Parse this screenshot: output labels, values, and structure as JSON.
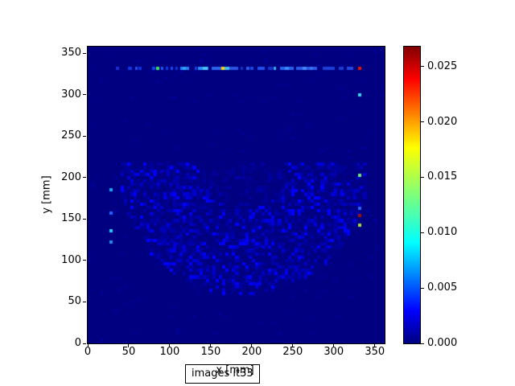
{
  "figure": {
    "annotation_label": "images it33"
  },
  "axes": {
    "xlabel": "x [mm]",
    "ylabel": "y [mm]",
    "x_ticks": [
      0,
      50,
      100,
      150,
      200,
      250,
      300,
      350
    ],
    "y_ticks": [
      0,
      50,
      100,
      150,
      200,
      250,
      300,
      350
    ],
    "x_range": [
      0,
      362
    ],
    "y_range": [
      0,
      358
    ],
    "plot_background": "#000080"
  },
  "colorbar": {
    "tick_labels": [
      "0.000",
      "0.005",
      "0.010",
      "0.015",
      "0.020",
      "0.025"
    ],
    "tick_values": [
      0,
      0.005,
      0.01,
      0.015,
      0.02,
      0.025
    ],
    "vmin": 0,
    "vmax": 0.0268,
    "colormap": "jet",
    "gradient_stops_bottom_to_top": [
      [
        0,
        "#000080"
      ],
      [
        0.11,
        "#0000ff"
      ],
      [
        0.34,
        "#00ffff"
      ],
      [
        0.5,
        "#7dff7a"
      ],
      [
        0.66,
        "#ffff00"
      ],
      [
        0.89,
        "#ff0000"
      ],
      [
        1,
        "#800000"
      ]
    ]
  },
  "chart_data": {
    "type": "heatmap",
    "title": "images it33",
    "xlabel": "x [mm]",
    "ylabel": "y [mm]",
    "x_range": [
      0,
      362
    ],
    "y_range": [
      0,
      358
    ],
    "cell_size_mm": 4,
    "colormap": "jet",
    "value_range": [
      0,
      0.0268
    ],
    "background_color": "#000080",
    "bright_row": {
      "y": 330,
      "height": 4,
      "segments": [
        {
          "x": 34,
          "w": 4,
          "color": "#1b2fd0"
        },
        {
          "x": 49,
          "w": 5,
          "color": "#1535e0"
        },
        {
          "x": 58,
          "w": 3,
          "color": "#2a4cf0"
        },
        {
          "x": 62,
          "w": 4,
          "color": "#1133dd"
        },
        {
          "x": 78,
          "w": 4,
          "color": "#0f42f5"
        },
        {
          "x": 83,
          "w": 4,
          "color": "#3fdf5f"
        },
        {
          "x": 89,
          "w": 3,
          "color": "#2255f0"
        },
        {
          "x": 95,
          "w": 3,
          "color": "#1038e0"
        },
        {
          "x": 101,
          "w": 3,
          "color": "#1846f0"
        },
        {
          "x": 107,
          "w": 3,
          "color": "#0c35d8"
        },
        {
          "x": 113,
          "w": 11,
          "color": "#2f7af5"
        },
        {
          "x": 116,
          "w": 4,
          "color": "#28a8f8"
        },
        {
          "x": 130,
          "w": 3,
          "color": "#1040e8"
        },
        {
          "x": 134,
          "w": 13,
          "color": "#2f8cf8"
        },
        {
          "x": 140,
          "w": 6,
          "color": "#4cc2f8"
        },
        {
          "x": 151,
          "w": 12,
          "color": "#2d64ee"
        },
        {
          "x": 163,
          "w": 4,
          "color": "#ffd400"
        },
        {
          "x": 167,
          "w": 6,
          "color": "#38c0ee"
        },
        {
          "x": 173,
          "w": 10,
          "color": "#2a55e4"
        },
        {
          "x": 186,
          "w": 3,
          "color": "#1031c8"
        },
        {
          "x": 193,
          "w": 4,
          "color": "#2a59e8"
        },
        {
          "x": 198,
          "w": 4,
          "color": "#1e48e0"
        },
        {
          "x": 207,
          "w": 9,
          "color": "#2050e8"
        },
        {
          "x": 220,
          "w": 6,
          "color": "#1233cc"
        },
        {
          "x": 227,
          "w": 3,
          "color": "#30b0f0"
        },
        {
          "x": 234,
          "w": 17,
          "color": "#2a62f0"
        },
        {
          "x": 240,
          "w": 5,
          "color": "#3f8cff"
        },
        {
          "x": 254,
          "w": 26,
          "color": "#2c58e8"
        },
        {
          "x": 262,
          "w": 5,
          "color": "#4488ff"
        },
        {
          "x": 271,
          "w": 4,
          "color": "#3a70f0"
        },
        {
          "x": 286,
          "w": 15,
          "color": "#1d3fd8"
        },
        {
          "x": 306,
          "w": 6,
          "color": "#1c3cd0"
        },
        {
          "x": 316,
          "w": 8,
          "color": "#2348e0"
        },
        {
          "x": 330,
          "w": 4,
          "color": "#e81600"
        }
      ]
    },
    "outlier_cells": [
      {
        "x": 26,
        "y": 183,
        "color": "#22a8e8"
      },
      {
        "x": 26,
        "y": 155,
        "color": "#2266ff"
      },
      {
        "x": 26,
        "y": 134,
        "color": "#30c8f8"
      },
      {
        "x": 26,
        "y": 120,
        "color": "#2c88f0"
      },
      {
        "x": 330,
        "y": 298,
        "color": "#35d8e8"
      },
      {
        "x": 330,
        "y": 201,
        "color": "#70e878"
      },
      {
        "x": 330,
        "y": 161,
        "color": "#2c62ff"
      },
      {
        "x": 330,
        "y": 152,
        "color": "#a01200"
      },
      {
        "x": 330,
        "y": 141,
        "color": "#aadf3a"
      }
    ],
    "noise_dome": {
      "description": "faint blue speckle noise filling the upper half-disc of the detector image",
      "cx": 190,
      "cy": 148,
      "r_outer": 152,
      "r_inner_dim": 50,
      "y_min": 140,
      "max_rel_intensity": 0.13,
      "seed": 1337
    }
  }
}
